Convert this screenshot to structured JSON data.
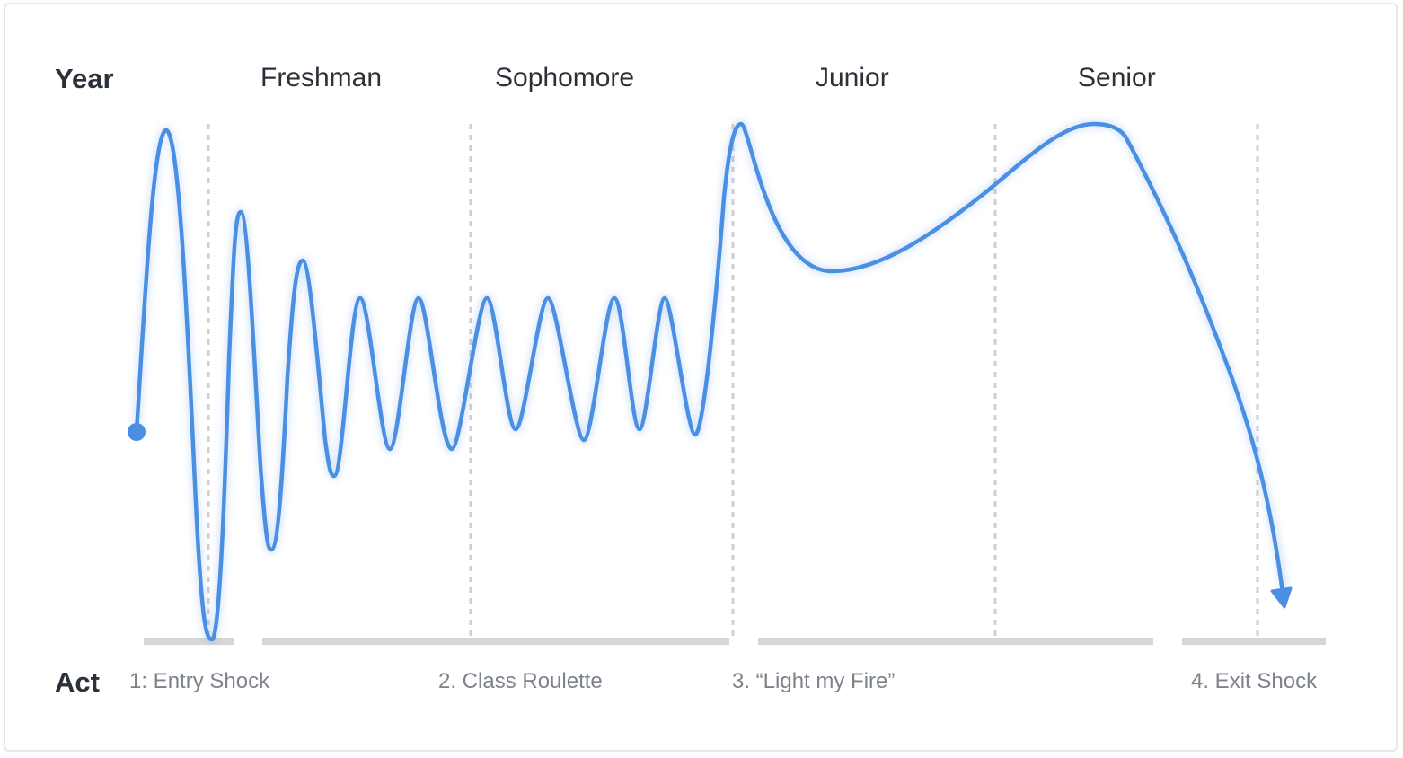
{
  "year_row": {
    "label": "Year",
    "years": [
      "Freshman",
      "Sophomore",
      "Junior",
      "Senior"
    ]
  },
  "act_row": {
    "label": "Act",
    "acts": [
      "1: Entry Shock",
      "2. Class Roulette",
      "3. “Light my Fire”",
      "4. Exit Shock"
    ]
  },
  "colors": {
    "curve": "#4a8fe2",
    "divider": "#cfcfcf",
    "act_bar": "#d6d6d6"
  }
}
